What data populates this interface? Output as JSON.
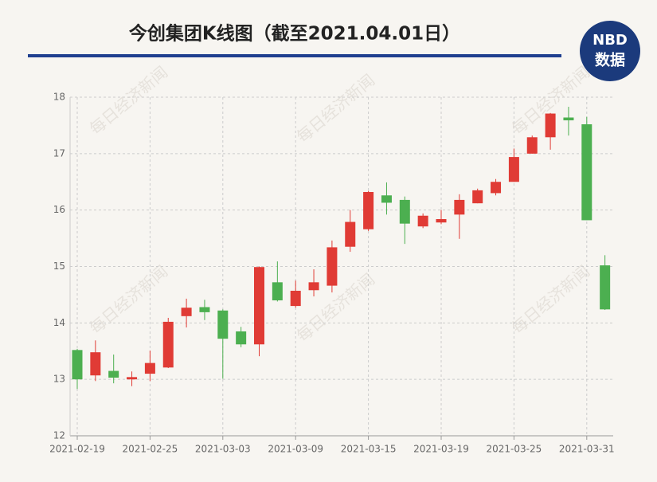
{
  "header": {
    "title": "今创集团K线图（截至2021.04.01日）",
    "logo_top": "NBD",
    "logo_bottom": "数据"
  },
  "watermark": "每日经济新闻",
  "chart_data": {
    "type": "candlestick",
    "categories": [
      "2021-02-19",
      null,
      null,
      null,
      "2021-02-25",
      null,
      null,
      null,
      "2021-03-03",
      null,
      null,
      null,
      "2021-03-09",
      null,
      null,
      null,
      "2021-03-15",
      null,
      null,
      null,
      "2021-03-19",
      null,
      null,
      null,
      "2021-03-25",
      null,
      null,
      null,
      "2021-03-31",
      null
    ],
    "open": [
      13.52,
      13.07,
      13.15,
      13.0,
      13.1,
      13.21,
      14.12,
      14.28,
      14.22,
      13.85,
      13.62,
      14.72,
      14.3,
      14.58,
      14.66,
      15.35,
      15.66,
      16.26,
      16.18,
      15.71,
      15.78,
      15.92,
      16.12,
      16.3,
      16.5,
      17.0,
      17.29,
      17.64,
      17.52,
      15.02
    ],
    "high": [
      13.54,
      13.69,
      13.44,
      13.14,
      13.51,
      14.09,
      14.43,
      14.41,
      14.24,
      13.93,
      15.0,
      15.09,
      14.75,
      14.95,
      15.46,
      16.0,
      16.34,
      16.49,
      16.24,
      15.94,
      16.0,
      16.28,
      16.38,
      16.55,
      17.09,
      17.32,
      17.72,
      17.83,
      17.65,
      15.2
    ],
    "low": [
      12.83,
      12.97,
      12.93,
      12.88,
      12.97,
      13.2,
      13.92,
      14.05,
      13.01,
      13.57,
      13.41,
      14.38,
      14.27,
      14.47,
      14.54,
      15.26,
      15.63,
      15.92,
      15.4,
      15.68,
      15.75,
      15.49,
      16.12,
      16.26,
      16.5,
      17.0,
      17.07,
      17.32,
      15.82,
      14.23
    ],
    "close": [
      13.0,
      13.48,
      13.03,
      13.04,
      13.29,
      14.02,
      14.27,
      14.19,
      13.72,
      13.62,
      14.99,
      14.4,
      14.57,
      14.72,
      15.34,
      15.79,
      16.32,
      16.13,
      15.76,
      15.9,
      15.84,
      16.18,
      16.35,
      16.5,
      16.94,
      17.29,
      17.71,
      17.59,
      15.82,
      14.24
    ],
    "up_color": "#e03b35",
    "down_color": "#4caf50",
    "ylim": [
      12,
      18
    ],
    "yticks": [
      12,
      13,
      14,
      15,
      16,
      17,
      18
    ],
    "grid": true
  }
}
